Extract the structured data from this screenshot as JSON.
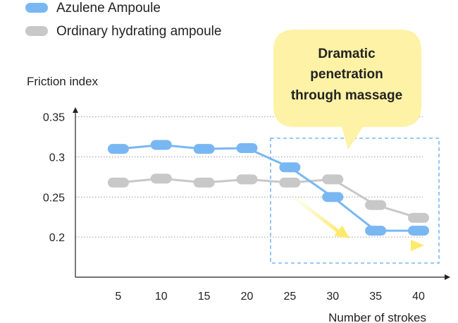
{
  "chart_data": {
    "type": "line",
    "x": [
      5,
      10,
      15,
      20,
      25,
      30,
      35,
      40
    ],
    "series": [
      {
        "name": "Azulene Ampoule",
        "color": "#79b7f3",
        "values": [
          0.31,
          0.315,
          0.31,
          0.311,
          0.287,
          0.25,
          0.208,
          0.208
        ]
      },
      {
        "name": "Ordinary hydrating ampoule",
        "color": "#c8c8c8",
        "values": [
          0.268,
          0.273,
          0.268,
          0.272,
          0.268,
          0.272,
          0.24,
          0.224
        ]
      }
    ],
    "ylabel": "Friction index",
    "xlabel": "Number of strokes",
    "yticks": [
      0.2,
      0.25,
      0.3,
      0.35
    ],
    "ytick_labels": [
      "0.2",
      "0.25",
      "0.3",
      "0.35"
    ],
    "ylim": [
      0.15,
      0.355
    ],
    "xlim": [
      0,
      40
    ],
    "grid": true,
    "legend_position": "top-left",
    "annotation": {
      "lines": [
        "Dramatic",
        "penetration",
        "through massage"
      ],
      "x_range": [
        22.5,
        42.5
      ],
      "color": "#fdf2a5",
      "border_color": "#79b7f3"
    },
    "arrow_color": "#fff19a"
  }
}
